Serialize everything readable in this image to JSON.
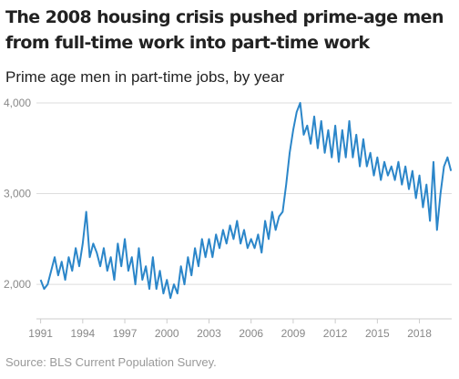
{
  "chart_data": {
    "type": "line",
    "title": [
      "The 2008 housing crisis pushed prime-age men",
      "from full-time work into part-time work"
    ],
    "subtitle": "Prime age men in part-time jobs, by year",
    "source": "Source: BLS Current Population Survey.",
    "x": [
      1991,
      1991.25,
      1991.5,
      1991.75,
      1992,
      1992.25,
      1992.5,
      1992.75,
      1993,
      1993.25,
      1993.5,
      1993.75,
      1994,
      1994.25,
      1994.5,
      1994.75,
      1995,
      1995.25,
      1995.5,
      1995.75,
      1996,
      1996.25,
      1996.5,
      1996.75,
      1997,
      1997.25,
      1997.5,
      1997.75,
      1998,
      1998.25,
      1998.5,
      1998.75,
      1999,
      1999.25,
      1999.5,
      1999.75,
      2000,
      2000.25,
      2000.5,
      2000.75,
      2001,
      2001.25,
      2001.5,
      2001.75,
      2002,
      2002.25,
      2002.5,
      2002.75,
      2003,
      2003.25,
      2003.5,
      2003.75,
      2004,
      2004.25,
      2004.5,
      2004.75,
      2005,
      2005.25,
      2005.5,
      2005.75,
      2006,
      2006.25,
      2006.5,
      2006.75,
      2007,
      2007.25,
      2007.5,
      2007.75,
      2008,
      2008.25,
      2008.5,
      2008.75,
      2009,
      2009.25,
      2009.5,
      2009.75,
      2010,
      2010.25,
      2010.5,
      2010.75,
      2011,
      2011.25,
      2011.5,
      2011.75,
      2012,
      2012.25,
      2012.5,
      2012.75,
      2013,
      2013.25,
      2013.5,
      2013.75,
      2014,
      2014.25,
      2014.5,
      2014.75,
      2015,
      2015.25,
      2015.5,
      2015.75,
      2016,
      2016.25,
      2016.5,
      2016.75,
      2017,
      2017.25,
      2017.5,
      2017.75,
      2018,
      2018.25,
      2018.5,
      2018.75,
      2019,
      2019.25,
      2019.5,
      2019.75,
      2020,
      2020.25
    ],
    "series": [
      {
        "name": "Prime age men in part-time jobs",
        "color": "#2b86c9",
        "values": [
          2050,
          1950,
          2000,
          2150,
          2300,
          2100,
          2250,
          2050,
          2300,
          2150,
          2400,
          2200,
          2450,
          2800,
          2300,
          2450,
          2350,
          2200,
          2400,
          2150,
          2300,
          2050,
          2450,
          2200,
          2500,
          2150,
          2300,
          2000,
          2400,
          2050,
          2200,
          1950,
          2300,
          1950,
          2150,
          1900,
          2050,
          1850,
          2000,
          1900,
          2200,
          2000,
          2300,
          2100,
          2400,
          2200,
          2500,
          2300,
          2500,
          2300,
          2550,
          2400,
          2600,
          2450,
          2650,
          2500,
          2700,
          2450,
          2600,
          2400,
          2500,
          2400,
          2550,
          2350,
          2700,
          2500,
          2800,
          2600,
          2750,
          2800,
          3100,
          3450,
          3700,
          3900,
          4000,
          3650,
          3750,
          3550,
          3850,
          3500,
          3800,
          3450,
          3700,
          3400,
          3750,
          3350,
          3700,
          3400,
          3800,
          3400,
          3650,
          3300,
          3600,
          3300,
          3450,
          3200,
          3400,
          3150,
          3350,
          3200,
          3300,
          3150,
          3350,
          3100,
          3300,
          3050,
          3250,
          2950,
          3200,
          2850,
          3100,
          2700,
          3350,
          2600,
          3000,
          3300,
          3400,
          3250
        ]
      }
    ],
    "xlim": [
      1990.7,
      2020.3
    ],
    "xticks": [
      1991,
      1994,
      1997,
      2000,
      2003,
      2006,
      2009,
      2012,
      2015,
      2018
    ],
    "ylim": [
      1620,
      4080
    ],
    "yticks": [
      {
        "value": 2000,
        "label": "2,000"
      },
      {
        "value": 3000,
        "label": "3,000"
      },
      {
        "value": 4000,
        "label": "4,000"
      }
    ],
    "grid": true
  }
}
